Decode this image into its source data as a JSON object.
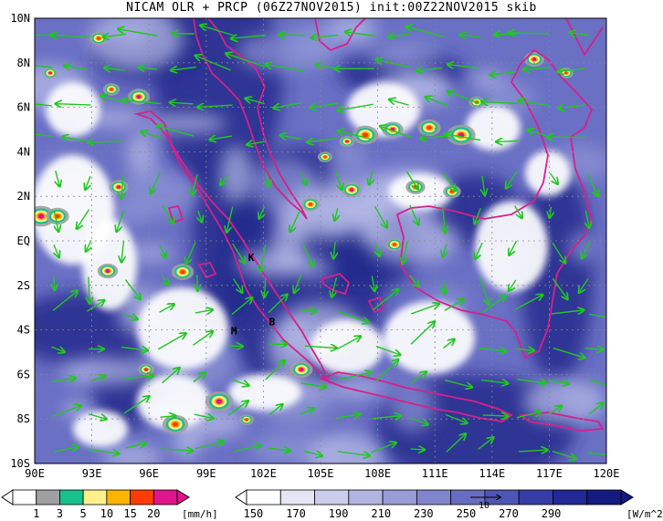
{
  "title": "NICAM OLR + PRCP (06Z27NOV2015) init:00Z22NOV2015 skib",
  "map": {
    "lat_labels": [
      "10N",
      "8N",
      "6N",
      "4N",
      "2N",
      "EQ",
      "2S",
      "4S",
      "6S",
      "8S",
      "10S"
    ],
    "lon_labels": [
      "90E",
      "93E",
      "96E",
      "99E",
      "102E",
      "105E",
      "108E",
      "111E",
      "114E",
      "117E",
      "120E"
    ],
    "lon_range": [
      90,
      120
    ],
    "lat_range": [
      -10,
      10
    ],
    "grid": "dotted",
    "markers": [
      {
        "label": "K",
        "lon": 101.2,
        "lat": -0.9
      },
      {
        "label": "M",
        "lon": 100.3,
        "lat": -4.2
      },
      {
        "label": "B",
        "lon": 102.3,
        "lat": -3.8
      }
    ],
    "colors": {
      "coastline": "#d6208c",
      "wind_vectors": "#1fc81f",
      "olr_dark": "#1e2280",
      "olr_light": "#ffffff"
    }
  },
  "precip_colorbar": {
    "labels": [
      "1",
      "3",
      "5",
      "10",
      "15",
      "20"
    ],
    "unit": "[mm/h]",
    "colors": [
      "#ffffff",
      "#a0a0a0",
      "#18c08c",
      "#fff08c",
      "#ffb400",
      "#ff3c00",
      "#e0148c"
    ]
  },
  "olr_colorbar": {
    "labels": [
      "150",
      "170",
      "190",
      "210",
      "230",
      "250",
      "270",
      "290"
    ],
    "unit": "[W/m^2]",
    "vector_ref_label": "10",
    "colors": [
      "#ffffff",
      "#e4e6f4",
      "#cacdec",
      "#b1b5e2",
      "#989dd8",
      "#8085cd",
      "#676dc2",
      "#4f55b5",
      "#373ca6",
      "#222895",
      "#141a80"
    ]
  }
}
